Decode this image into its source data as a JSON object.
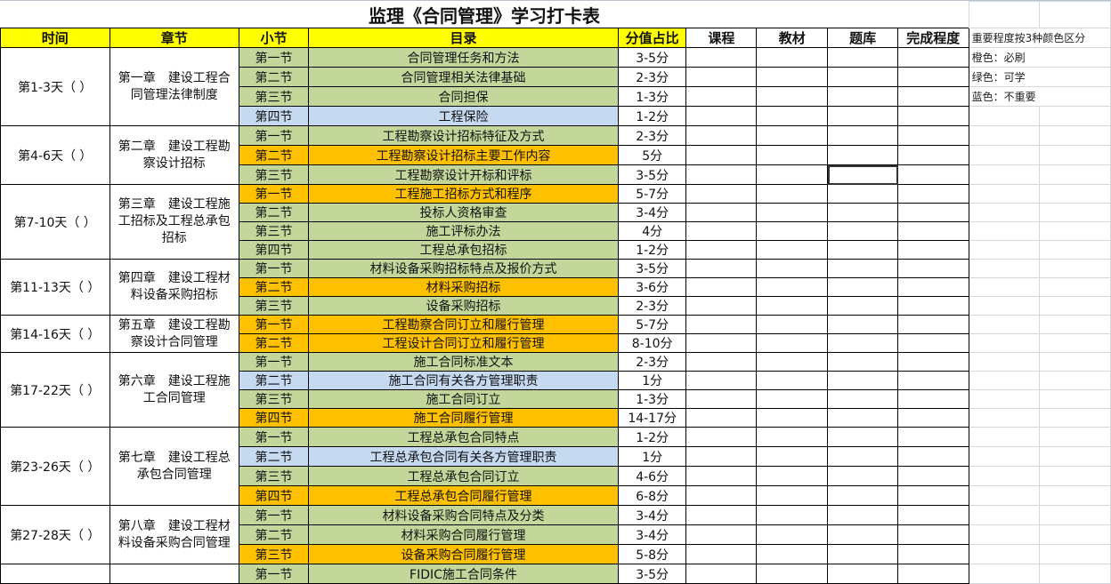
{
  "title": "监理《合同管理》学习打卡表",
  "headers": [
    "时间",
    "章节",
    "小节",
    "目录",
    "分值占比",
    "课程",
    "教材",
    "题库",
    "完成程度"
  ],
  "legend": {
    "heading": "重要程度按3种颜色区分",
    "items": [
      "橙色：必刷",
      "绿色：可学",
      "蓝色：不重要"
    ]
  },
  "colors": {
    "header": "#ffff00",
    "orange": "#ffc000",
    "green": "#c4d79b",
    "blue": "#c5d9f1"
  },
  "chapters": [
    {
      "time": "第1-3天（ ）",
      "chapter": "第一章　建设工程合同管理法律制度",
      "sections": [
        {
          "label": "第一节",
          "topic": "合同管理任务和方法",
          "score": "3-5分",
          "color": "green"
        },
        {
          "label": "第二节",
          "topic": "合同管理相关法律基础",
          "score": "2-3分",
          "color": "green"
        },
        {
          "label": "第三节",
          "topic": "合同担保",
          "score": "1-3分",
          "color": "green"
        },
        {
          "label": "第四节",
          "topic": "工程保险",
          "score": "1-2分",
          "color": "blue"
        }
      ]
    },
    {
      "time": "第4-6天（ ）",
      "chapter": "第二章　建设工程勘察设计招标",
      "sections": [
        {
          "label": "第一节",
          "topic": "工程勘察设计招标特征及方式",
          "score": "2-3分",
          "color": "green"
        },
        {
          "label": "第二节",
          "topic": "工程勘察设计招标主要工作内容",
          "score": "5分",
          "color": "orange"
        },
        {
          "label": "第三节",
          "topic": "工程勘察设计开标和评标",
          "score": "3-5分",
          "color": "green"
        }
      ]
    },
    {
      "time": "第7-10天（ ）",
      "chapter": "第三章　建设工程施工招标及工程总承包招标",
      "sections": [
        {
          "label": "第一节",
          "topic": "工程施工招标方式和程序",
          "score": "5-7分",
          "color": "orange"
        },
        {
          "label": "第二节",
          "topic": "投标人资格审查",
          "score": "3-4分",
          "color": "green"
        },
        {
          "label": "第三节",
          "topic": "施工评标办法",
          "score": "4分",
          "color": "green"
        },
        {
          "label": "第四节",
          "topic": "工程总承包招标",
          "score": "1-2分",
          "color": "green"
        }
      ]
    },
    {
      "time": "第11-13天（ ）",
      "chapter": "第四章　建设工程材料设备采购招标",
      "sections": [
        {
          "label": "第一节",
          "topic": "材料设备采购招标特点及报价方式",
          "score": "3-5分",
          "color": "green"
        },
        {
          "label": "第二节",
          "topic": "材料采购招标",
          "score": "3-6分",
          "color": "orange"
        },
        {
          "label": "第三节",
          "topic": "设备采购招标",
          "score": "2-3分",
          "color": "green"
        }
      ]
    },
    {
      "time": "第14-16天（ ）",
      "chapter": "第五章　建设工程勘察设计合同管理",
      "sections": [
        {
          "label": "第一节",
          "topic": "工程勘察合同订立和履行管理",
          "score": "5-7分",
          "color": "orange"
        },
        {
          "label": "第二节",
          "topic": "工程设计合同订立和履行管理",
          "score": "8-10分",
          "color": "orange"
        }
      ]
    },
    {
      "time": "第17-22天（ ）",
      "chapter": "第六章　建设工程施工合同管理",
      "sections": [
        {
          "label": "第一节",
          "topic": "施工合同标准文本",
          "score": "2-3分",
          "color": "green"
        },
        {
          "label": "第二节",
          "topic": "施工合同有关各方管理职责",
          "score": "1分",
          "color": "blue"
        },
        {
          "label": "第三节",
          "topic": "施工合同订立",
          "score": "1-3分",
          "color": "green"
        },
        {
          "label": "第四节",
          "topic": "施工合同履行管理",
          "score": "14-17分",
          "color": "orange"
        }
      ]
    },
    {
      "time": "第23-26天（ ）",
      "chapter": "第七章　建设工程总承包合同管理",
      "sections": [
        {
          "label": "第一节",
          "topic": "工程总承包合同特点",
          "score": "1-2分",
          "color": "green"
        },
        {
          "label": "第二节",
          "topic": "工程总承包合同有关各方管理职责",
          "score": "1分",
          "color": "blue"
        },
        {
          "label": "第三节",
          "topic": "工程总承包合同订立",
          "score": "4-6分",
          "color": "green"
        },
        {
          "label": "第四节",
          "topic": "工程总承包合同履行管理",
          "score": "6-8分",
          "color": "orange"
        }
      ]
    },
    {
      "time": "第27-28天（ ）",
      "chapter": "第八章　建设工程材料设备采购合同管理",
      "sections": [
        {
          "label": "第一节",
          "topic": "材料设备采购合同特点及分类",
          "score": "3-4分",
          "color": "green"
        },
        {
          "label": "第二节",
          "topic": "材料采购合同履行管理",
          "score": "3-4分",
          "color": "green"
        },
        {
          "label": "第三节",
          "topic": "设备采购合同履行管理",
          "score": "5-8分",
          "color": "orange"
        }
      ]
    },
    {
      "time": "",
      "chapter": "",
      "sections": [
        {
          "label": "第一节",
          "topic": "FIDIC施工合同条件",
          "score": "3-5分",
          "color": "green"
        }
      ]
    }
  ]
}
